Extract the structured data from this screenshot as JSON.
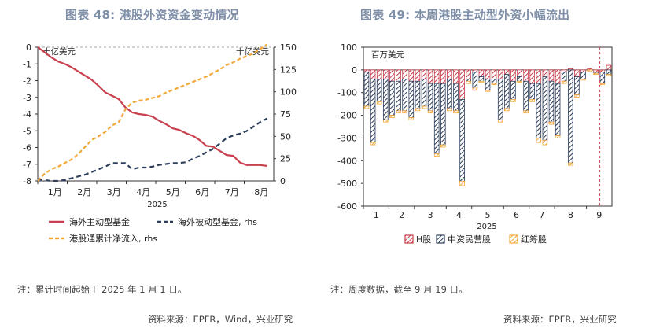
{
  "left": {
    "title": "图表 48: 港股外资资金变动情况",
    "note": "注：累计时间起始于 2025 年 1 月 1 日。",
    "source": "资料来源：EPFR，Wind，兴业研究"
  },
  "right": {
    "title": "图表 49: 本周港股主动型外资小幅流出",
    "note": "注：周度数据，截至 9 月 19 日。",
    "source": "资料来源：EPFR，兴业研究"
  },
  "colors": {
    "active": "#c9404e",
    "passive": "#2e3f5c",
    "southbound": "#f2a93b",
    "title": "#7f8fa8"
  },
  "chart_data": [
    {
      "type": "line",
      "title": "图表 48: 港股外资资金变动情况",
      "y_left_label": "十亿美元",
      "y_right_label": "十亿美元",
      "y_left_lim": [
        -8,
        0
      ],
      "y_right_lim": [
        0,
        150
      ],
      "y_left_ticks": [
        "0",
        "-1",
        "-2",
        "-3",
        "-4",
        "-5",
        "-6",
        "-7",
        "-8"
      ],
      "y_right_ticks": [
        "150",
        "125",
        "100",
        "75",
        "50",
        "25",
        "0"
      ],
      "x_ticks": [
        "1月",
        "2月",
        "3月",
        "4月",
        "5月",
        "6月",
        "7月",
        "8月"
      ],
      "x_year": "2025",
      "x_lim": [
        0,
        35
      ],
      "legend": [
        "海外主动型基金",
        "海外被动型基金, rhs",
        "港股通累计净流入, rhs"
      ],
      "series": [
        {
          "name": "海外主动型基金",
          "axis": "left",
          "style": "solid",
          "x": [
            0,
            1,
            2,
            3,
            4,
            5,
            6,
            7,
            8,
            9,
            10,
            11,
            12,
            13,
            14,
            15,
            16,
            17,
            18,
            19,
            20,
            21,
            22,
            23,
            24,
            25,
            26,
            27,
            28,
            29,
            30,
            31,
            32,
            33,
            34
          ],
          "values": [
            0,
            -0.3,
            -0.6,
            -0.85,
            -1.0,
            -1.2,
            -1.45,
            -1.7,
            -1.95,
            -2.3,
            -2.7,
            -2.9,
            -3.1,
            -3.6,
            -3.9,
            -4.0,
            -4.05,
            -4.15,
            -4.4,
            -4.6,
            -4.85,
            -4.95,
            -5.15,
            -5.3,
            -5.55,
            -5.9,
            -5.95,
            -6.2,
            -6.45,
            -6.5,
            -6.9,
            -7.05,
            -7.05,
            -7.05,
            -7.1
          ]
        },
        {
          "name": "海外被动型基金, rhs",
          "axis": "right",
          "style": "dashed",
          "x": [
            0,
            1,
            2,
            3,
            4,
            5,
            6,
            7,
            8,
            9,
            10,
            11,
            12,
            13,
            14,
            15,
            16,
            17,
            18,
            19,
            20,
            21,
            22,
            23,
            24,
            25,
            26,
            27,
            28,
            29,
            30,
            31,
            32,
            33,
            34
          ],
          "values": [
            2,
            1,
            0,
            0,
            1,
            3,
            5,
            7,
            10,
            13,
            16,
            20,
            20,
            20,
            13,
            15,
            15,
            16,
            18,
            19,
            20,
            20,
            21,
            25,
            28,
            32,
            36,
            42,
            48,
            51,
            53,
            56,
            61,
            66,
            70
          ]
        },
        {
          "name": "港股通累计净流入, rhs",
          "axis": "right",
          "style": "dashed",
          "x": [
            0,
            1,
            2,
            3,
            4,
            5,
            6,
            7,
            8,
            9,
            10,
            11,
            12,
            13,
            14,
            15,
            16,
            17,
            18,
            19,
            20,
            21,
            22,
            23,
            24,
            25,
            26,
            27,
            28,
            29,
            30,
            31,
            32,
            33,
            34
          ],
          "values": [
            0,
            8,
            13,
            16,
            20,
            24,
            30,
            38,
            46,
            50,
            55,
            62,
            66,
            80,
            88,
            90,
            91,
            93,
            95,
            99,
            102,
            105,
            108,
            111,
            114,
            117,
            121,
            125,
            130,
            133,
            137,
            140,
            143,
            148,
            153
          ]
        }
      ]
    },
    {
      "type": "bar",
      "stacked": true,
      "title": "图表 49: 本周港股主动型外资小幅流出",
      "ylabel": "百万美元",
      "ylim": [
        -600,
        100
      ],
      "y_ticks": [
        "100",
        "0",
        "-100",
        "-200",
        "-300",
        "-400",
        "-500",
        "-600"
      ],
      "x_ticks": [
        "1",
        "2",
        "3",
        "4",
        "5",
        "6",
        "7",
        "8",
        "9"
      ],
      "x_year": "2025",
      "legend": [
        "H股",
        "中资民营股",
        "红筹股"
      ],
      "series": [
        {
          "name": "H股",
          "values": [
            -10,
            -40,
            -40,
            -40,
            -50,
            -50,
            -40,
            -50,
            -50,
            -40,
            -60,
            -60,
            -60,
            -40,
            -60,
            -130,
            -40,
            -10,
            -30,
            -40,
            -40,
            -40,
            -20,
            -50,
            -30,
            -50,
            -60,
            -60,
            -30,
            -50,
            -60,
            -10,
            5,
            -30,
            -10,
            5,
            -10,
            -10,
            20
          ]
        },
        {
          "name": "中资民营股",
          "values": [
            -150,
            -280,
            -100,
            -180,
            -150,
            -130,
            -140,
            -160,
            -120,
            -120,
            -120,
            -310,
            -270,
            -130,
            -120,
            -360,
            -10,
            -70,
            -20,
            -50,
            -20,
            -180,
            -150,
            -80,
            -20,
            -130,
            -70,
            -240,
            -280,
            -180,
            -230,
            -40,
            -410,
            -80,
            -30,
            0,
            -5,
            -50,
            -20
          ]
        },
        {
          "name": "红筹股",
          "values": [
            -10,
            -10,
            -10,
            -10,
            -10,
            -10,
            -10,
            -10,
            -10,
            -10,
            -10,
            -10,
            -10,
            -10,
            -10,
            -20,
            -10,
            -10,
            -5,
            -5,
            -5,
            -10,
            -10,
            -10,
            -5,
            -10,
            -10,
            -20,
            -20,
            -10,
            -10,
            -10,
            -10,
            -10,
            -5,
            -5,
            -5,
            -5,
            -5
          ]
        }
      ]
    }
  ]
}
